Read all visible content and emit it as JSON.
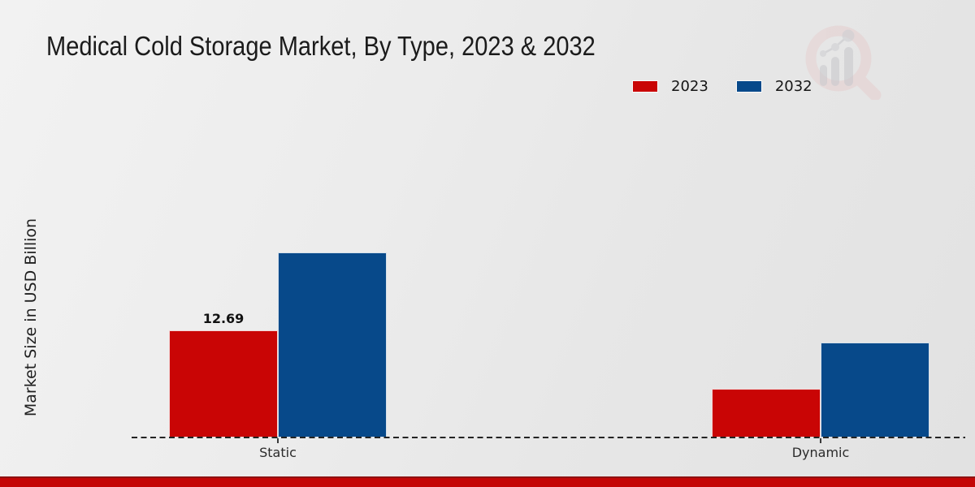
{
  "title": "Medical Cold Storage Market, By Type, 2023 & 2032",
  "y_axis_label": "Market Size in USD Billion",
  "legend": {
    "position": "top-right",
    "items": [
      {
        "label": "2023",
        "color": "#c90505"
      },
      {
        "label": "2032",
        "color": "#07498a"
      }
    ]
  },
  "watermark": {
    "name": "market-research-magnifier-logo",
    "ring_color": "#e5cfcf",
    "bars_color": "#c9c9cd"
  },
  "footer_bar_color": "#c40606",
  "chart_data": {
    "type": "bar",
    "categories": [
      "Static",
      "Dynamic"
    ],
    "series": [
      {
        "name": "2023",
        "color": "#c90505",
        "values": [
          12.69,
          5.8
        ],
        "labels": [
          "12.69",
          ""
        ]
      },
      {
        "name": "2032",
        "color": "#07498a",
        "values": [
          21.9,
          11.2
        ],
        "labels": [
          "",
          ""
        ]
      }
    ],
    "data_labels_shown": [
      "12.69"
    ],
    "xlabel": "",
    "ylabel": "Market Size in USD Billion",
    "ylim": [
      0,
      25
    ],
    "grid": false,
    "legend_position": "top-right",
    "baseline_style": "dashed"
  }
}
